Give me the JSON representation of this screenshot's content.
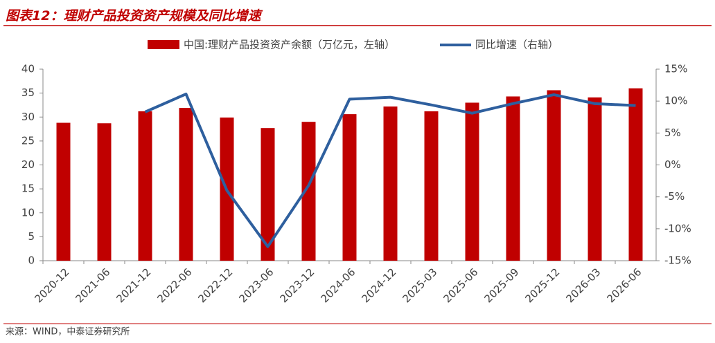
{
  "chart_data": {
    "type": "bar",
    "title": "图表12：理财产品投资资产规模及同比增速",
    "source": "来源：WIND，中泰证券研究所",
    "categories": [
      "2020-12",
      "2021-06",
      "2021-12",
      "2022-06",
      "2022-12",
      "2023-06",
      "2023-12",
      "2024-06",
      "2024-12",
      "2025-03",
      "2025-06",
      "2025-09",
      "2025-12",
      "2026-03",
      "2026-06"
    ],
    "series": [
      {
        "name": "中国:理财产品投资资产余额（万亿元，左轴）",
        "type": "bar",
        "color": "#c00000",
        "values": [
          28.8,
          28.7,
          31.2,
          31.9,
          29.9,
          27.7,
          29.0,
          30.6,
          32.2,
          31.2,
          33.0,
          34.3,
          35.6,
          34.1,
          36.0
        ]
      },
      {
        "name": "同比增速（右轴）",
        "type": "line",
        "axis": "y2",
        "color": "#2e5f9e",
        "values": [
          null,
          null,
          8.3,
          11.1,
          -4.0,
          -12.8,
          -3.2,
          10.3,
          10.6,
          9.4,
          8.1,
          9.6,
          11.0,
          9.6,
          9.3
        ]
      }
    ],
    "ylim": [
      0,
      40
    ],
    "yticks": [
      0,
      5,
      10,
      15,
      20,
      25,
      30,
      35,
      40
    ],
    "y2lim": [
      -15,
      15
    ],
    "y2ticks": [
      {
        "value": -15,
        "label": "-15%"
      },
      {
        "value": -10,
        "label": "-10%"
      },
      {
        "value": -5,
        "label": "-5%"
      },
      {
        "value": 0,
        "label": "0%"
      },
      {
        "value": 5,
        "label": "5%"
      },
      {
        "value": 10,
        "label": "10%"
      },
      {
        "value": 15,
        "label": "15%"
      }
    ],
    "legend": "top",
    "grid": false
  }
}
